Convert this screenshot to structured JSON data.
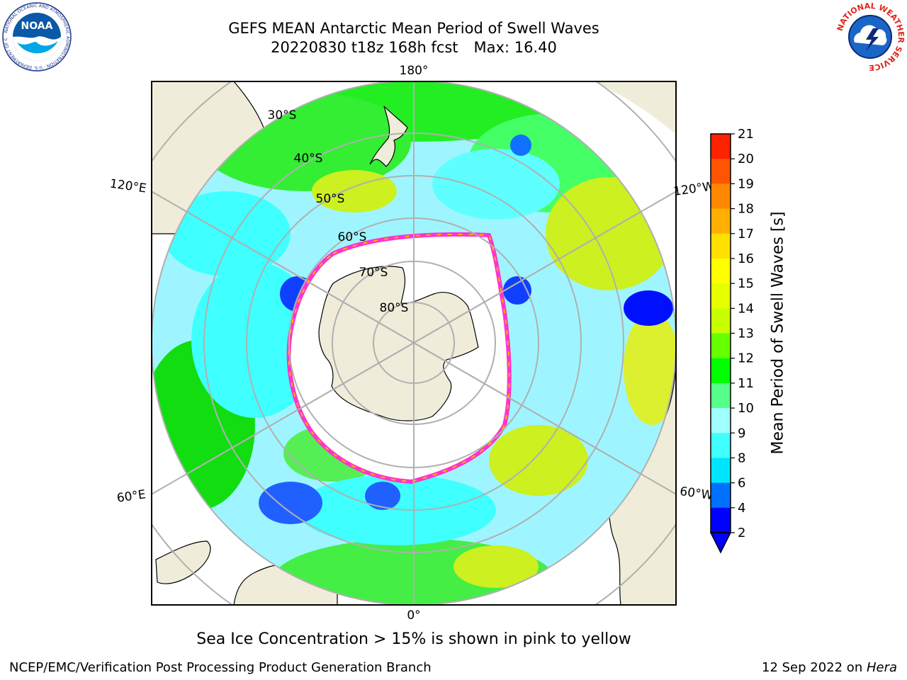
{
  "title": {
    "line1": "GEFS MEAN Antarctic Mean Period of Swell Waves",
    "line2_left": "20220830 t18z 168h fcst",
    "line2_right": "Max: 16.40"
  },
  "logos": {
    "left": "NOAA",
    "left_ring_text": "NATIONAL OCEANIC AND ATMOSPHERIC ADMINISTRATION · U.S. DEPARTMENT OF COMMERCE",
    "right": "NATIONAL WEATHER SERVICE"
  },
  "map": {
    "projection": "south-polar-stereographic",
    "longitude_labels": {
      "top": "180°",
      "bottom": "0°",
      "upper_left": "120°E",
      "upper_right": "120°W",
      "lower_left": "60°E",
      "lower_right": "60°W"
    },
    "latitude_labels": [
      "30°S",
      "40°S",
      "50°S",
      "60°S",
      "70°S",
      "80°S"
    ],
    "colors": {
      "land": "#efedda",
      "grid": "#b0b0b0",
      "ice_edge": "#ff33cc"
    }
  },
  "colorbar": {
    "label": "Mean Period of Swell Waves [s]",
    "ticks": [
      "2",
      "4",
      "6",
      "8",
      "9",
      "10",
      "11",
      "12",
      "13",
      "14",
      "15",
      "16",
      "17",
      "18",
      "19",
      "20",
      "21"
    ],
    "colors": [
      "#0000ff",
      "#0070ff",
      "#00e5ff",
      "#40ffff",
      "#a0ffff",
      "#55ff88",
      "#00ff00",
      "#66ff00",
      "#c8ff00",
      "#e8ff00",
      "#ffff00",
      "#ffe000",
      "#ffb000",
      "#ff8800",
      "#ff5500",
      "#ff2200",
      "#ff0000"
    ],
    "extend": "min"
  },
  "notes": {
    "ice": "Sea Ice Concentration > 15% is shown in pink to yellow"
  },
  "footer": {
    "left": "NCEP/EMC/Verification Post Processing Product Generation Branch",
    "date": "12 Sep 2022 on ",
    "machine": "Hera"
  }
}
